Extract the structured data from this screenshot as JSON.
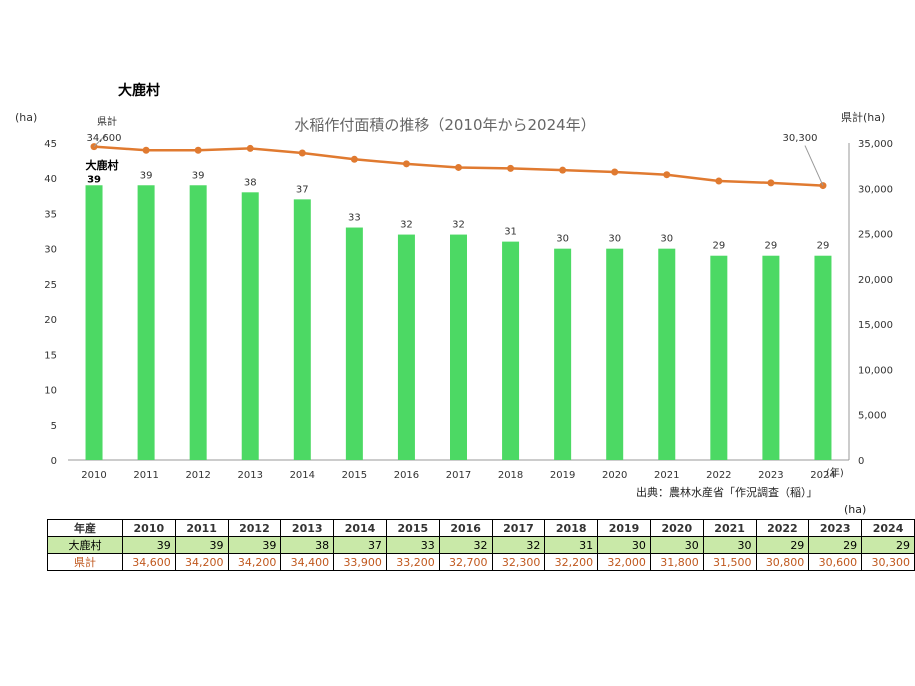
{
  "village_title": "大鹿村",
  "source_note": "出典：農林水産省「作況調査（稲）」",
  "table_unit": "(ha)",
  "chart_data": {
    "type": "bar",
    "title": "水稲作付面積の推移（2010年から2024年）",
    "categories": [
      "2010",
      "2011",
      "2012",
      "2013",
      "2014",
      "2015",
      "2016",
      "2017",
      "2018",
      "2019",
      "2020",
      "2021",
      "2022",
      "2023",
      "2024"
    ],
    "xunit": "(年)",
    "series": [
      {
        "name": "大鹿村",
        "type": "bar",
        "axis": "left",
        "color": "#4cd964",
        "values": [
          39,
          39,
          39,
          38,
          37,
          33,
          32,
          32,
          31,
          30,
          30,
          30,
          29,
          29,
          29
        ]
      },
      {
        "name": "県計",
        "type": "line",
        "axis": "right",
        "color": "#e07a30",
        "values": [
          34600,
          34200,
          34200,
          34400,
          33900,
          33200,
          32700,
          32300,
          32200,
          32000,
          31800,
          31500,
          30800,
          30600,
          30300
        ]
      }
    ],
    "y_left": {
      "unit": "(ha)",
      "min": 0,
      "max": 45,
      "ticks": [
        0,
        5,
        10,
        15,
        20,
        25,
        30,
        35,
        40,
        45
      ]
    },
    "y_right": {
      "unit": "県計(ha)",
      "min": 0,
      "max": 35000,
      "ticks": [
        0,
        5000,
        10000,
        15000,
        20000,
        25000,
        30000,
        35000
      ],
      "tick_labels": [
        "0",
        "5,000",
        "10,000",
        "15,000",
        "20,000",
        "25,000",
        "30,000",
        "35,000"
      ]
    },
    "annotations": {
      "line_start_name": "県計",
      "line_start_value": "34,600",
      "line_end_value": "30,300",
      "bar_start_name": "大鹿村"
    },
    "grid": false
  },
  "table": {
    "header_label": "年産",
    "years": [
      "2010",
      "2011",
      "2012",
      "2013",
      "2014",
      "2015",
      "2016",
      "2017",
      "2018",
      "2019",
      "2020",
      "2021",
      "2022",
      "2023",
      "2024"
    ],
    "rows": [
      {
        "label": "大鹿村",
        "values": [
          "39",
          "39",
          "39",
          "38",
          "37",
          "33",
          "32",
          "32",
          "31",
          "30",
          "30",
          "30",
          "29",
          "29",
          "29"
        ]
      },
      {
        "label": "県計",
        "values": [
          "34,600",
          "34,200",
          "34,200",
          "34,400",
          "33,900",
          "33,200",
          "32,700",
          "32,300",
          "32,200",
          "32,000",
          "31,800",
          "31,500",
          "30,800",
          "30,600",
          "30,300"
        ]
      }
    ]
  }
}
